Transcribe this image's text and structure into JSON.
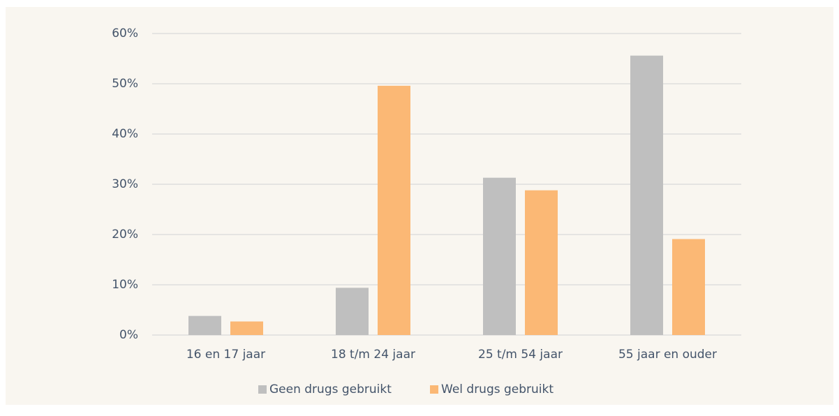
{
  "chart_data": {
    "type": "bar",
    "categories": [
      "16 en 17 jaar",
      "18 t/m 24 jaar",
      "25 t/m 54 jaar",
      "55 jaar en ouder"
    ],
    "series": [
      {
        "name": "Geen drugs gebruikt",
        "color": "#bfbfbf",
        "values": [
          3.8,
          9.4,
          31.3,
          55.6
        ]
      },
      {
        "name": "Wel drugs gebruikt",
        "color": "#fbb875",
        "values": [
          2.7,
          49.6,
          28.8,
          19.1
        ]
      }
    ],
    "ylim": [
      0,
      60
    ],
    "yticks": [
      {
        "value": 0,
        "label": "0%"
      },
      {
        "value": 10,
        "label": "10%"
      },
      {
        "value": 20,
        "label": "20%"
      },
      {
        "value": 30,
        "label": "30%"
      },
      {
        "value": 40,
        "label": "40%"
      },
      {
        "value": 50,
        "label": "50%"
      },
      {
        "value": 60,
        "label": "60%"
      }
    ],
    "grid": true,
    "legend": "bottom"
  }
}
